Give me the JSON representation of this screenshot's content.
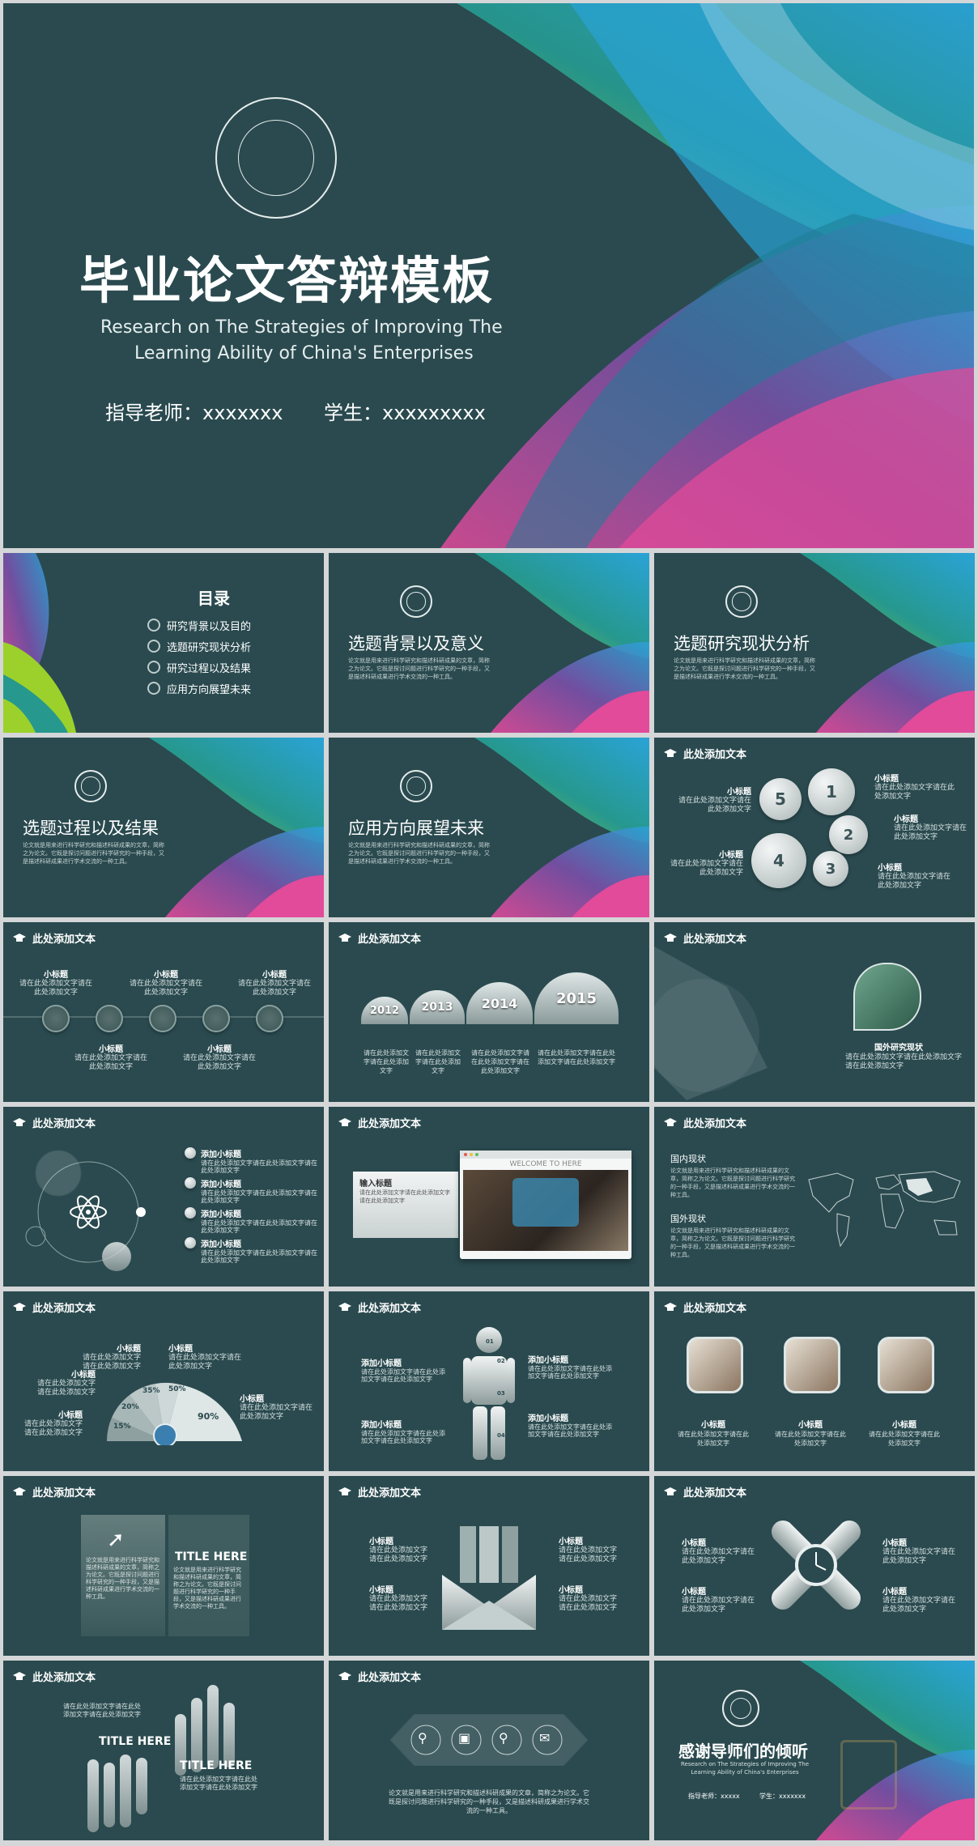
{
  "cover": {
    "title": "毕业论文答辩模板",
    "subtitle_line1": "Research on The Strategies of Improving The",
    "subtitle_line2": "Learning Ability of China's Enterprises",
    "advisor": "指导老师：xxxxxxx",
    "student": "学生：xxxxxxxxx"
  },
  "toc": {
    "title": "目录",
    "items": [
      "研究背景以及目的",
      "选题研究现状分析",
      "研究过程以及结果",
      "应用方向展望未来"
    ]
  },
  "section_para": "论文就是用来进行科学研究和描述科研成果的文章，简称之为论文。它既是探讨问题进行科学研究的一种手段，又是描述科研成果进行学术交流的一种工具。",
  "sections": [
    "选题背景以及意义",
    "选题研究现状分析",
    "选题过程以及结果",
    "应用方向展望未来"
  ],
  "header_text": "此处添加文本",
  "subtitle": "小标题",
  "add_subtitle": "添加小标题",
  "input_title": "输入标题",
  "body_short": "请在此处添加文字请在此处添加文字",
  "body_long": "请在此处添加文字请在此处添加文字请在此处添加文字",
  "petals": [
    "5",
    "1",
    "2",
    "3",
    "4"
  ],
  "years": [
    "2012",
    "2013",
    "2014",
    "2015"
  ],
  "foreign_status": "国外研究现状",
  "welcome": "WELCOME TO HERE",
  "domestic": "国内现状",
  "abroad": "国外现状",
  "percents": [
    "15%",
    "20%",
    "35%",
    "50%",
    "90%"
  ],
  "body_numbers": [
    "01",
    "02",
    "03",
    "04"
  ],
  "title_here": "TITLE HERE",
  "thanks": {
    "title": "感谢导师们的倾听",
    "line1": "Research on The Strategies of Improving The",
    "line2": "Learning Ability of China's Enterprises",
    "advisor": "指导老师：xxxxx",
    "student": "学生：xxxxxxx"
  },
  "colors": {
    "bg": "#2a4a4f",
    "green": "#9bd12a",
    "blue": "#2aa3d6",
    "pink": "#e24a9a",
    "purple": "#7b4ea8"
  }
}
